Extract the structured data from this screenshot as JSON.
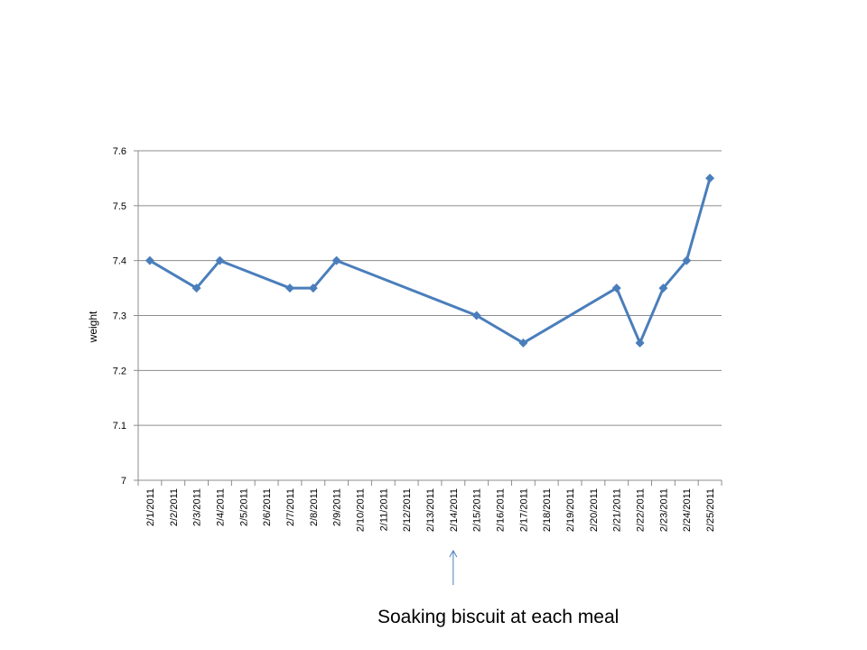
{
  "chart_data": {
    "type": "line",
    "title": "",
    "xlabel": "",
    "ylabel": "weight",
    "ylim": [
      7,
      7.6
    ],
    "yticks": [
      "7",
      "7.1",
      "7.2",
      "7.3",
      "7.4",
      "7.5",
      "7.6"
    ],
    "grid": true,
    "legend": "none",
    "categories": [
      "2/1/2011",
      "2/2/2011",
      "2/3/2011",
      "2/4/2011",
      "2/5/2011",
      "2/6/2011",
      "2/7/2011",
      "2/8/2011",
      "2/9/2011",
      "2/10/2011",
      "2/11/2011",
      "2/12/2011",
      "2/13/2011",
      "2/14/2011",
      "2/15/2011",
      "2/16/2011",
      "2/17/2011",
      "2/18/2011",
      "2/19/2011",
      "2/20/2011",
      "2/21/2011",
      "2/22/2011",
      "2/23/2011",
      "2/24/2011",
      "2/25/2011"
    ],
    "series": [
      {
        "color": "#4a7ebb",
        "points": [
          {
            "x": "2/1/2011",
            "y": 7.4
          },
          {
            "x": "2/3/2011",
            "y": 7.35
          },
          {
            "x": "2/4/2011",
            "y": 7.4
          },
          {
            "x": "2/7/2011",
            "y": 7.35
          },
          {
            "x": "2/8/2011",
            "y": 7.35
          },
          {
            "x": "2/9/2011",
            "y": 7.4
          },
          {
            "x": "2/15/2011",
            "y": 7.3
          },
          {
            "x": "2/17/2011",
            "y": 7.25
          },
          {
            "x": "2/21/2011",
            "y": 7.35
          },
          {
            "x": "2/22/2011",
            "y": 7.25
          },
          {
            "x": "2/23/2011",
            "y": 7.35
          },
          {
            "x": "2/24/2011",
            "y": 7.4
          },
          {
            "x": "2/25/2011",
            "y": 7.55
          }
        ]
      }
    ],
    "annotations": [
      {
        "text": "Soaking biscuit at each meal",
        "points_to": "2/14/2011",
        "arrow_color": "#4a7ebb"
      }
    ]
  }
}
